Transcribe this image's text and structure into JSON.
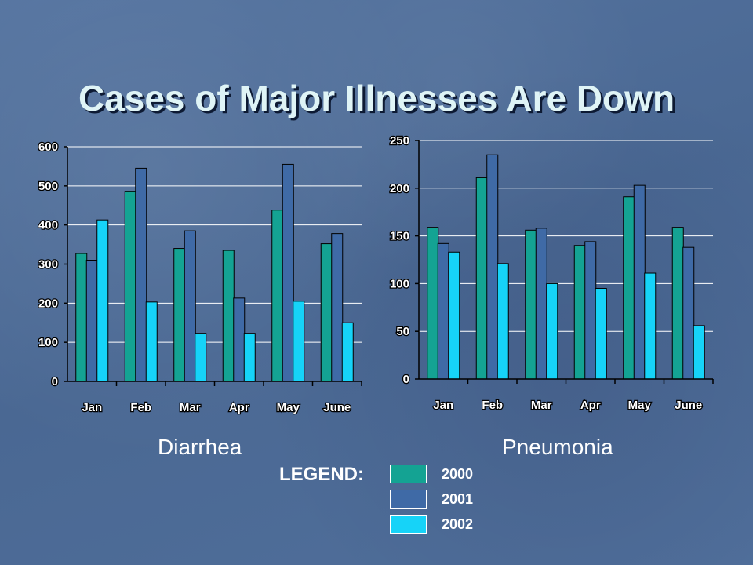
{
  "slide": {
    "title": "Cases of Major Illnesses Are Down"
  },
  "chart_data": [
    {
      "type": "bar",
      "title": "",
      "caption": "Diarrhea",
      "categories": [
        "Jan",
        "Feb",
        "Mar",
        "Apr",
        "May",
        "June"
      ],
      "ylim": [
        0,
        600
      ],
      "yticks": [
        0,
        100,
        200,
        300,
        400,
        500,
        600
      ],
      "grid": true,
      "series": [
        {
          "name": "2000",
          "values": [
            327,
            485,
            340,
            335,
            438,
            352
          ]
        },
        {
          "name": "2001",
          "values": [
            310,
            545,
            385,
            213,
            555,
            378
          ]
        },
        {
          "name": "2002",
          "values": [
            413,
            203,
            123,
            123,
            205,
            150
          ]
        }
      ]
    },
    {
      "type": "bar",
      "title": "",
      "caption": "Pneumonia",
      "categories": [
        "Jan",
        "Feb",
        "Mar",
        "Apr",
        "May",
        "June"
      ],
      "ylim": [
        0,
        250
      ],
      "yticks": [
        0,
        50,
        100,
        150,
        200,
        250
      ],
      "grid": true,
      "series": [
        {
          "name": "2000",
          "values": [
            159,
            211,
            156,
            140,
            191,
            159
          ]
        },
        {
          "name": "2001",
          "values": [
            142,
            235,
            158,
            144,
            203,
            138
          ]
        },
        {
          "name": "2002",
          "values": [
            133,
            121,
            100,
            95,
            111,
            56
          ]
        }
      ]
    }
  ],
  "legend": {
    "label": "LEGEND:",
    "items": [
      {
        "name": "2000",
        "color": "#14a393"
      },
      {
        "name": "2001",
        "color": "#3f6aa6"
      },
      {
        "name": "2002",
        "color": "#16d3f8"
      }
    ]
  }
}
